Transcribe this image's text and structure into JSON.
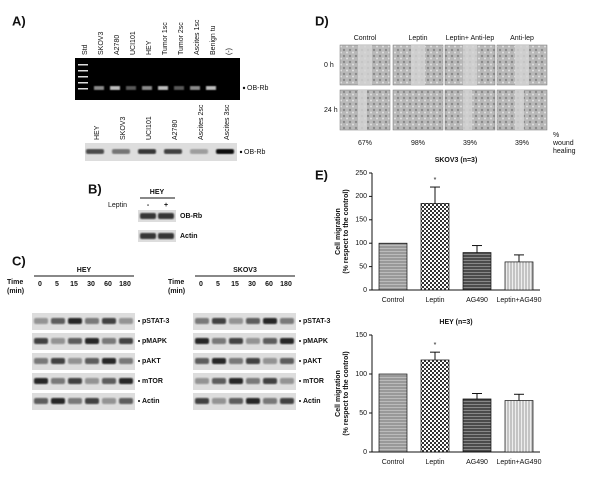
{
  "panels": [
    "A)",
    "B)",
    "C)",
    "D)",
    "E)"
  ],
  "panel_a": {
    "gel1_lanes": [
      "Std",
      "SKOV3",
      "A2780",
      "UCI101",
      "HEY",
      "Tumor 1sc",
      "Tumor 2sc",
      "Ascites 1sc",
      "Benign tu",
      "(-)"
    ],
    "gel2_lanes": [
      "HEY",
      "SKOV3",
      "UCI101",
      "A2780",
      "Ascites 2sc",
      "Ascites 3sc"
    ],
    "band": "OB-Rb"
  },
  "panel_b": {
    "cell": "HEY",
    "treatment": "Leptin",
    "conditions": [
      "-",
      "+"
    ],
    "bands": [
      "OB-Rb",
      "Actin"
    ]
  },
  "panel_c": {
    "time_label": [
      "Time",
      "(min)"
    ],
    "times": [
      "0",
      "5",
      "15",
      "30",
      "60",
      "180"
    ],
    "blots": [
      "HEY",
      "SKOV3"
    ],
    "bands": [
      "pSTAT-3",
      "pMAPK",
      "pAKT",
      "mTOR",
      "Actin"
    ]
  },
  "panel_d": {
    "columns": [
      "Control",
      "Leptin",
      "Leptin+ Anti-lep",
      "Anti-lep"
    ],
    "rows": [
      "0 h",
      "24 h"
    ],
    "percentages": [
      "67%",
      "98%",
      "39%",
      "39%"
    ],
    "unit_label": [
      "%",
      "wound",
      "healing"
    ]
  },
  "chart_data": [
    {
      "type": "bar",
      "title": "SKOV3 (n=3)",
      "ylabel": [
        "Cell migration",
        "(% respect to the control)"
      ],
      "categories": [
        "Control",
        "Leptin",
        "AG490",
        "Leptin+AG490"
      ],
      "values": [
        100,
        185,
        80,
        60
      ],
      "errors": [
        0,
        35,
        15,
        15
      ],
      "annotation": {
        "text": "*",
        "category": "Leptin"
      },
      "ylim": [
        0,
        250
      ],
      "yticks": [
        0,
        50,
        100,
        150,
        200,
        250
      ]
    },
    {
      "type": "bar",
      "title": "HEY (n=3)",
      "ylabel": [
        "Cell migration",
        "(% respect to the control)"
      ],
      "categories": [
        "Control",
        "Leptin",
        "AG490",
        "Leptin+AG490"
      ],
      "values": [
        100,
        118,
        68,
        66
      ],
      "errors": [
        0,
        10,
        7,
        8
      ],
      "annotation": {
        "text": "*",
        "category": "Leptin"
      },
      "ylim": [
        0,
        150
      ],
      "yticks": [
        0,
        50,
        100,
        150
      ]
    }
  ]
}
